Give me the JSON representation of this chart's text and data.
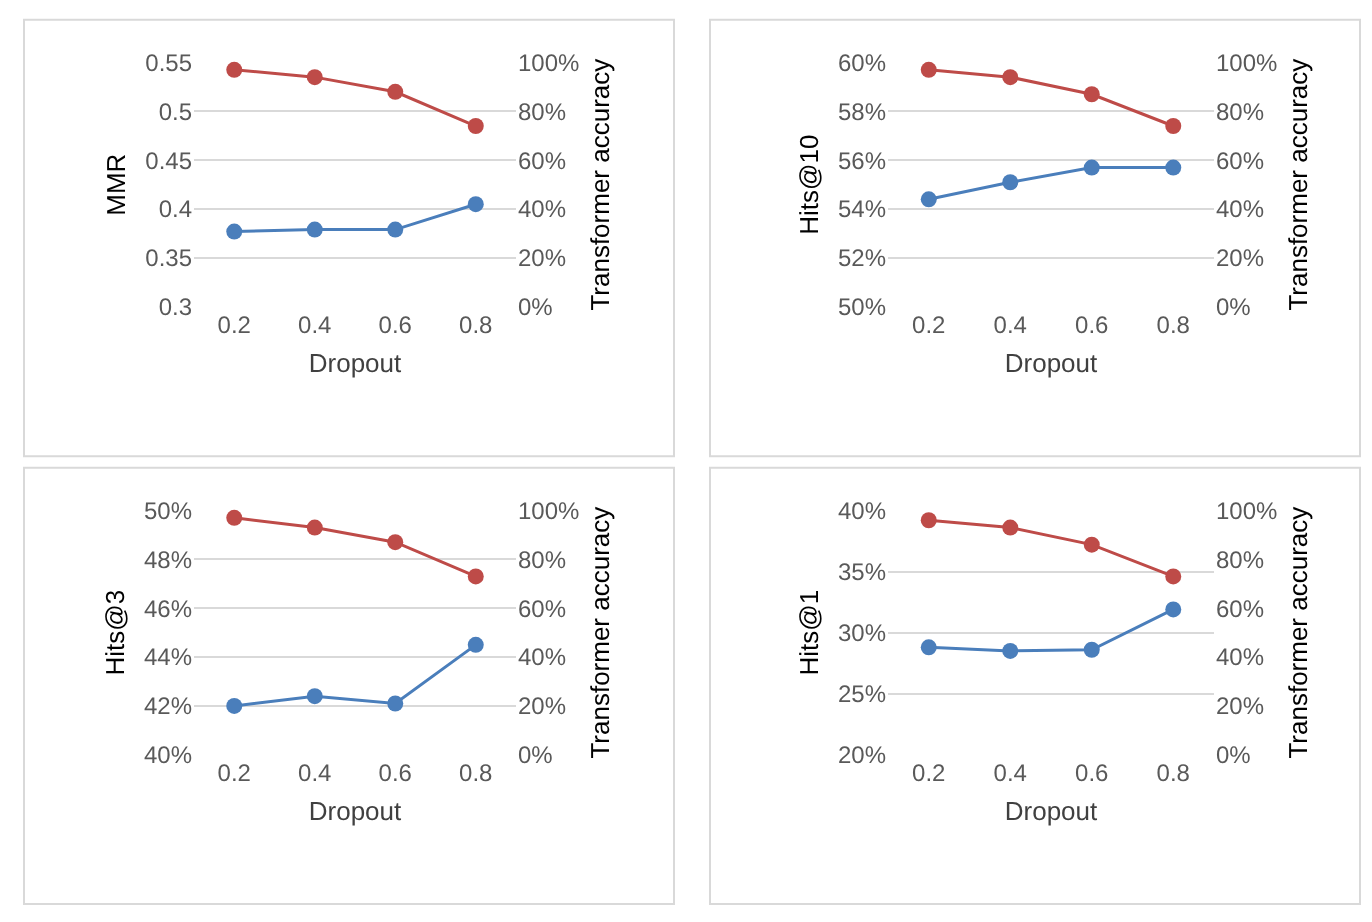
{
  "chart_data": [
    {
      "type": "line",
      "categories": [
        "0.2",
        "0.4",
        "0.6",
        "0.8"
      ],
      "xlabel": "Dropout",
      "ylabel": "MMR",
      "y2label": "Transformer accuracy",
      "ylim": [
        0.3,
        0.55
      ],
      "yticks": [
        0.3,
        0.35,
        0.4,
        0.45,
        0.5,
        0.55
      ],
      "y2lim": [
        0,
        100
      ],
      "y2ticks": [
        {
          "value": 0,
          "label": "0%"
        },
        {
          "value": 20,
          "label": "20%"
        },
        {
          "value": 40,
          "label": "40%"
        },
        {
          "value": 60,
          "label": "60%"
        },
        {
          "value": 80,
          "label": "80%"
        },
        {
          "value": 100,
          "label": "100%"
        }
      ],
      "grid": "y",
      "marker": "circle",
      "series": [
        {
          "color": "#4a7ebb",
          "values": [
            0.377,
            0.379,
            0.379,
            0.405
          ]
        },
        {
          "color": "#be4b48",
          "axis": "y2",
          "values": [
            97,
            94,
            88,
            74
          ]
        }
      ]
    },
    {
      "type": "line",
      "categories": [
        "0.2",
        "0.4",
        "0.6",
        "0.8"
      ],
      "xlabel": "Dropout",
      "ylabel": "Hits@10",
      "y2label": "Transformer accuracy",
      "ylim": [
        50,
        60
      ],
      "yticks": [
        {
          "value": 50,
          "label": "50%"
        },
        {
          "value": 52,
          "label": "52%"
        },
        {
          "value": 54,
          "label": "54%"
        },
        {
          "value": 56,
          "label": "56%"
        },
        {
          "value": 58,
          "label": "58%"
        },
        {
          "value": 60,
          "label": "60%"
        }
      ],
      "y2lim": [
        0,
        100
      ],
      "y2ticks": [
        {
          "value": 0,
          "label": "0%"
        },
        {
          "value": 20,
          "label": "20%"
        },
        {
          "value": 40,
          "label": "40%"
        },
        {
          "value": 60,
          "label": "60%"
        },
        {
          "value": 80,
          "label": "80%"
        },
        {
          "value": 100,
          "label": "100%"
        }
      ],
      "grid": "y",
      "marker": "circle",
      "series": [
        {
          "color": "#4a7ebb",
          "values": [
            54.4,
            55.1,
            55.7,
            55.7
          ]
        },
        {
          "color": "#be4b48",
          "axis": "y2",
          "values": [
            97,
            94,
            87,
            74
          ]
        }
      ]
    },
    {
      "type": "line",
      "categories": [
        "0.2",
        "0.4",
        "0.6",
        "0.8"
      ],
      "xlabel": "Dropout",
      "ylabel": "Hits@3",
      "y2label": "Transformer accuracy",
      "ylim": [
        40,
        50
      ],
      "yticks": [
        {
          "value": 40,
          "label": "40%"
        },
        {
          "value": 42,
          "label": "42%"
        },
        {
          "value": 44,
          "label": "44%"
        },
        {
          "value": 46,
          "label": "46%"
        },
        {
          "value": 48,
          "label": "48%"
        },
        {
          "value": 50,
          "label": "50%"
        }
      ],
      "y2lim": [
        0,
        100
      ],
      "y2ticks": [
        {
          "value": 0,
          "label": "0%"
        },
        {
          "value": 20,
          "label": "20%"
        },
        {
          "value": 40,
          "label": "40%"
        },
        {
          "value": 60,
          "label": "60%"
        },
        {
          "value": 80,
          "label": "80%"
        },
        {
          "value": 100,
          "label": "100%"
        }
      ],
      "grid": "y",
      "marker": "circle",
      "series": [
        {
          "color": "#4a7ebb",
          "values": [
            42.0,
            42.4,
            42.1,
            44.5
          ]
        },
        {
          "color": "#be4b48",
          "axis": "y2",
          "values": [
            97,
            93,
            87,
            73
          ]
        }
      ]
    },
    {
      "type": "line",
      "categories": [
        "0.2",
        "0.4",
        "0.6",
        "0.8"
      ],
      "xlabel": "Dropout",
      "ylabel": "Hits@1",
      "y2label": "Transformer accuracy",
      "ylim": [
        20,
        40
      ],
      "yticks": [
        {
          "value": 20,
          "label": "20%"
        },
        {
          "value": 25,
          "label": "25%"
        },
        {
          "value": 30,
          "label": "30%"
        },
        {
          "value": 35,
          "label": "35%"
        },
        {
          "value": 40,
          "label": "40%"
        }
      ],
      "y2lim": [
        0,
        100
      ],
      "y2ticks": [
        {
          "value": 0,
          "label": "0%"
        },
        {
          "value": 20,
          "label": "20%"
        },
        {
          "value": 40,
          "label": "40%"
        },
        {
          "value": 60,
          "label": "60%"
        },
        {
          "value": 80,
          "label": "80%"
        },
        {
          "value": 100,
          "label": "100%"
        }
      ],
      "grid": "y",
      "marker": "circle",
      "series": [
        {
          "color": "#4a7ebb",
          "values": [
            28.8,
            28.5,
            28.6,
            31.9
          ]
        },
        {
          "color": "#be4b48",
          "axis": "y2",
          "values": [
            96,
            93,
            86,
            73
          ]
        }
      ]
    }
  ]
}
